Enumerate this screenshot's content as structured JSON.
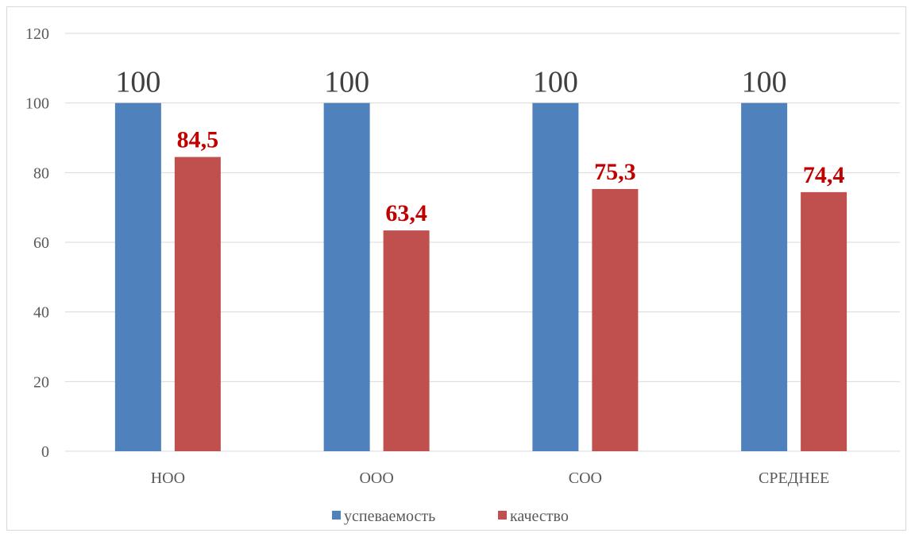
{
  "chart_data": {
    "type": "bar",
    "categories": [
      "НОО",
      "ООО",
      "СОО",
      "СРЕДНЕЕ"
    ],
    "series": [
      {
        "name": "успеваемость",
        "values": [
          100,
          100,
          100,
          100
        ],
        "color": "#4f81bd",
        "labels": [
          "100",
          "100",
          "100",
          "100"
        ]
      },
      {
        "name": "качество",
        "values": [
          84.5,
          63.4,
          75.3,
          74.4
        ],
        "color": "#c0504d",
        "labels": [
          "84,5",
          "63,4",
          "75,3",
          "74,4"
        ]
      }
    ],
    "ylim": [
      0,
      120
    ],
    "yticks": [
      0,
      20,
      40,
      60,
      80,
      100,
      120
    ],
    "grid": true,
    "legend": "bottom",
    "title": "",
    "xlabel": "",
    "ylabel": ""
  }
}
